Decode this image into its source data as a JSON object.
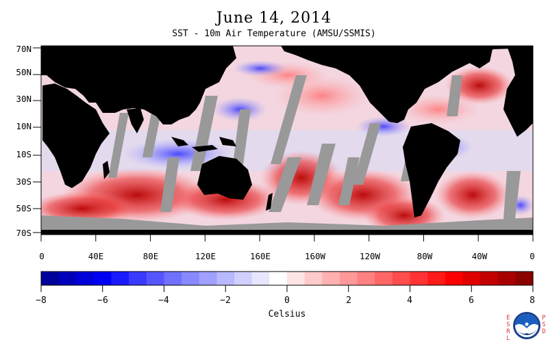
{
  "header": {
    "title": "June 14, 2014",
    "subtitle": "SST - 10m Air Temperature (AMSU/SSMIS)"
  },
  "map": {
    "lat_labels": [
      "70N",
      "50N",
      "30N",
      "10N",
      "10S",
      "30S",
      "50S",
      "70S"
    ],
    "lon_labels": [
      "0",
      "40E",
      "80E",
      "120E",
      "160E",
      "160W",
      "120W",
      "80W",
      "40W",
      "0"
    ],
    "colors": {
      "land": "#000000",
      "missing": "#999999",
      "ocean_cold": "#3b3bff",
      "ocean_warm": "#e01010"
    }
  },
  "colorbar": {
    "label": "Celsius",
    "tick_labels": [
      "−8",
      "−6",
      "−4",
      "−2",
      "0",
      "2",
      "4",
      "6",
      "8"
    ],
    "range": [
      -8,
      8
    ],
    "colors": [
      "#00009a",
      "#0000bb",
      "#0000d8",
      "#0000f5",
      "#1a1aff",
      "#3a3aff",
      "#5656ff",
      "#7070ff",
      "#8989ff",
      "#a0a0ff",
      "#b8b8ff",
      "#d0d0ff",
      "#e6e6ff",
      "#ffffff",
      "#ffe4e4",
      "#ffcaca",
      "#ffb0b0",
      "#ff9898",
      "#ff8080",
      "#ff6666",
      "#ff4c4c",
      "#ff3333",
      "#ff1a1a",
      "#ff0000",
      "#e00000",
      "#c40000",
      "#a80000",
      "#8c0000"
    ]
  },
  "logo": {
    "left_text": "E S R L",
    "right_text": "P S D",
    "name": "NOAA"
  }
}
